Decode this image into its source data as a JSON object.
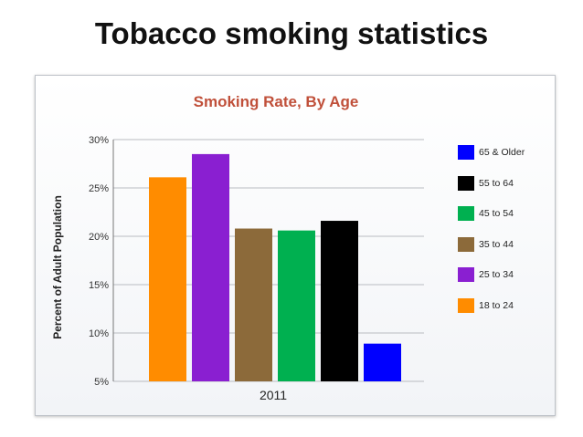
{
  "slide": {
    "title": "Tobacco smoking statistics"
  },
  "chart_data": {
    "type": "bar",
    "title": "Smoking Rate, By Age",
    "title_color": "#c0503a",
    "xlabel": "",
    "ylabel": "Percent of Adult Population",
    "ylim": [
      5,
      30
    ],
    "yticks": [
      "5%",
      "10%",
      "15%",
      "20%",
      "25%",
      "30%"
    ],
    "ytick_values": [
      5,
      10,
      15,
      20,
      25,
      30
    ],
    "grid": true,
    "legend_position": "right",
    "categories": [
      "2011"
    ],
    "series": [
      {
        "name": "18 to 24",
        "color": "#ff8c00",
        "values": [
          26.1
        ]
      },
      {
        "name": "25 to 34",
        "color": "#8a1fd1",
        "values": [
          28.5
        ]
      },
      {
        "name": "35 to 44",
        "color": "#8c6a3a",
        "values": [
          20.8
        ]
      },
      {
        "name": "45 to 54",
        "color": "#00b050",
        "values": [
          20.6
        ]
      },
      {
        "name": "55 to 64",
        "color": "#000000",
        "values": [
          21.6
        ]
      },
      {
        "name": "65 & Older",
        "color": "#0000ff",
        "values": [
          8.9
        ]
      }
    ],
    "legend_order": [
      "65 & Older",
      "55 to 64",
      "45 to 54",
      "35 to 44",
      "25 to 34",
      "18 to 24"
    ]
  }
}
